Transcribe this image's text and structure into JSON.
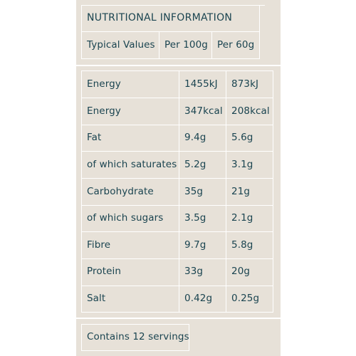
{
  "header": {
    "title": "NUTRITIONAL INFORMATION",
    "col_label": "Typical Values",
    "col_per100": "Per 100g",
    "col_per60": "Per 60g"
  },
  "rows": [
    {
      "label": "Energy",
      "per100": "1455kJ",
      "per60": "873kJ"
    },
    {
      "label": "Energy",
      "per100": "347kcal",
      "per60": "208kcal"
    },
    {
      "label": "Fat",
      "per100": "9.4g",
      "per60": "5.6g"
    },
    {
      "label": "of which saturates",
      "per100": "5.2g",
      "per60": "3.1g"
    },
    {
      "label": "Carbohydrate",
      "per100": "35g",
      "per60": "21g"
    },
    {
      "label": "of which sugars",
      "per100": "3.5g",
      "per60": "2.1g"
    },
    {
      "label": "Fibre",
      "per100": "9.7g",
      "per60": "5.8g"
    },
    {
      "label": "Protein",
      "per100": "33g",
      "per60": "20g"
    },
    {
      "label": "Salt",
      "per100": "0.42g",
      "per60": "0.25g"
    }
  ],
  "footer": {
    "servings": "Contains 12 servings"
  },
  "colors": {
    "panel_bg": "#e7e1d8",
    "text": "#1a4450",
    "rules": "#ffffff"
  }
}
